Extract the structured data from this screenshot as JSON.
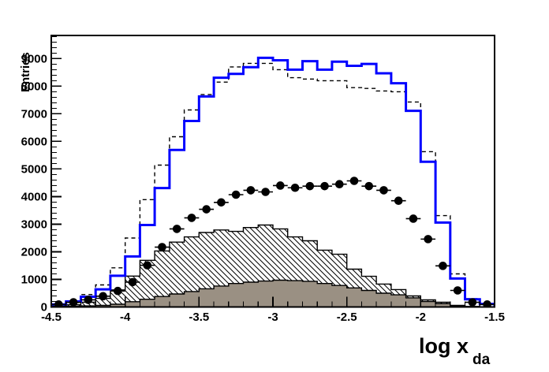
{
  "chart_data": {
    "type": "bar",
    "subtype": "overlaid-step-histograms",
    "title": "",
    "xlabel": "log x",
    "xlabel_subscript": "da",
    "ylabel": "Entries",
    "xlim": [
      -4.5,
      -1.5
    ],
    "ylim": [
      0,
      9840
    ],
    "grid": false,
    "legend": "none",
    "x_ticks": [
      -4.5,
      -4,
      -3.5,
      -3,
      -2.5,
      -2,
      -1.5
    ],
    "x_tick_labels": [
      "-4.5",
      "-4",
      "-3.5",
      "-3",
      "-2.5",
      "-2",
      "-1.5"
    ],
    "x_minor_step": 0.1,
    "y_ticks": [
      0,
      1000,
      2000,
      3000,
      4000,
      5000,
      6000,
      7000,
      8000,
      9000
    ],
    "y_tick_labels": [
      "0",
      "1000",
      "2000",
      "3000",
      "4000",
      "5000",
      "6000",
      "7000",
      "8000",
      "9000"
    ],
    "y_minor_step": 200,
    "bin_start": -4.5,
    "bin_width": 0.1,
    "n_bins": 30,
    "series": [
      {
        "name": "solid-blue-histogram",
        "style": "step-solid",
        "color": "#0000ff",
        "line_width": 3,
        "values": [
          90,
          200,
          370,
          640,
          1130,
          1830,
          2970,
          4310,
          5690,
          6740,
          7630,
          8310,
          8450,
          8690,
          9030,
          8940,
          8600,
          8910,
          8600,
          8890,
          8740,
          8810,
          8470,
          8110,
          7110,
          5260,
          3060,
          1030,
          280,
          110
        ]
      },
      {
        "name": "dashed-black-histogram",
        "style": "step-dashed",
        "color": "#000000",
        "line_width": 1.4,
        "values": [
          60,
          160,
          450,
          800,
          1420,
          2500,
          3890,
          5140,
          6170,
          7140,
          7700,
          8150,
          8700,
          8830,
          8830,
          8600,
          8310,
          8260,
          8200,
          8200,
          7950,
          7920,
          7830,
          7800,
          7430,
          5630,
          3310,
          1200,
          300,
          110
        ]
      },
      {
        "name": "hatched-histogram",
        "style": "step-filled-hatched",
        "color": "#000000",
        "fill": "diagonal-hatch-white",
        "values": [
          30,
          80,
          170,
          310,
          620,
          1120,
          1690,
          2030,
          2350,
          2540,
          2700,
          2790,
          2740,
          2880,
          2970,
          2830,
          2540,
          2400,
          2060,
          1910,
          1370,
          1110,
          830,
          630,
          400,
          260,
          170,
          60,
          20,
          0
        ]
      },
      {
        "name": "gray-filled-histogram",
        "style": "step-filled-solid",
        "color": "#9a9083",
        "values": [
          15,
          25,
          40,
          60,
          100,
          190,
          280,
          380,
          470,
          560,
          660,
          760,
          850,
          900,
          940,
          970,
          955,
          930,
          850,
          780,
          690,
          600,
          500,
          440,
          330,
          200,
          120,
          40,
          10,
          0
        ]
      },
      {
        "name": "black-circle-data-points",
        "style": "markers-with-x-error-bars",
        "marker": "filled-circle",
        "color": "#000000",
        "x": [
          -4.45,
          -4.35,
          -4.25,
          -4.15,
          -4.05,
          -3.95,
          -3.85,
          -3.75,
          -3.65,
          -3.55,
          -3.45,
          -3.35,
          -3.25,
          -3.15,
          -3.05,
          -2.95,
          -2.85,
          -2.75,
          -2.65,
          -2.55,
          -2.45,
          -2.35,
          -2.25,
          -2.15,
          -2.05,
          -1.95,
          -1.85,
          -1.75,
          -1.65,
          -1.55
        ],
        "y": [
          90,
          170,
          260,
          390,
          580,
          900,
          1510,
          2170,
          2830,
          3230,
          3540,
          3790,
          4070,
          4230,
          4170,
          4400,
          4320,
          4380,
          4380,
          4450,
          4570,
          4380,
          4230,
          3850,
          3200,
          2460,
          1490,
          600,
          170,
          90
        ]
      }
    ]
  },
  "colors": {
    "background": "#ffffff",
    "frame": "#000000",
    "blue_line": "#0000ff",
    "gray_fill": "#9a9083",
    "hatch_line": "#000000"
  }
}
